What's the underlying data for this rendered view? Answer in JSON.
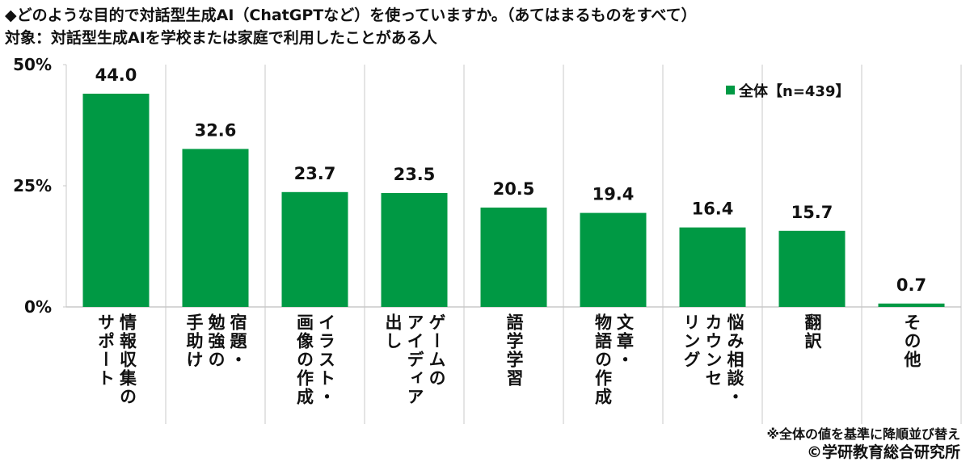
{
  "chart_data": {
    "type": "bar",
    "title": "◆どのような目的で対話型生成AI（ChatGPTなど）を使っていますか。（あてはまるものをすべて）",
    "subtitle": "対象：対話型生成AIを学校または家庭で利用したことがある人",
    "categories": [
      "情報収集の\nサポート",
      "宿題・\n勉強の\n手助け",
      "イラスト・\n画像の作成",
      "ゲームの\nアイディア\n出し",
      "語学学習",
      "文章・\n物語の作成",
      "悩み相談・\nカウンセ\nリング",
      "翻訳",
      "その他"
    ],
    "series": [
      {
        "name": "全体【n=439】",
        "color": "#009944",
        "values": [
          44.0,
          32.6,
          23.7,
          23.5,
          20.5,
          19.4,
          16.4,
          15.7,
          0.7
        ],
        "value_labels": [
          "44.0",
          "32.6",
          "23.7",
          "23.5",
          "20.5",
          "19.4",
          "16.4",
          "15.7",
          "0.7"
        ]
      }
    ],
    "ylim": [
      0,
      50
    ],
    "yticks": [
      {
        "value": 0,
        "label": "0%"
      },
      {
        "value": 25,
        "label": "25%"
      },
      {
        "value": 50,
        "label": "50%"
      }
    ],
    "legend_position": "top-right",
    "notes": [
      "※全体の値を基準に降順並び替え",
      "©学研教育総合研究所"
    ]
  }
}
